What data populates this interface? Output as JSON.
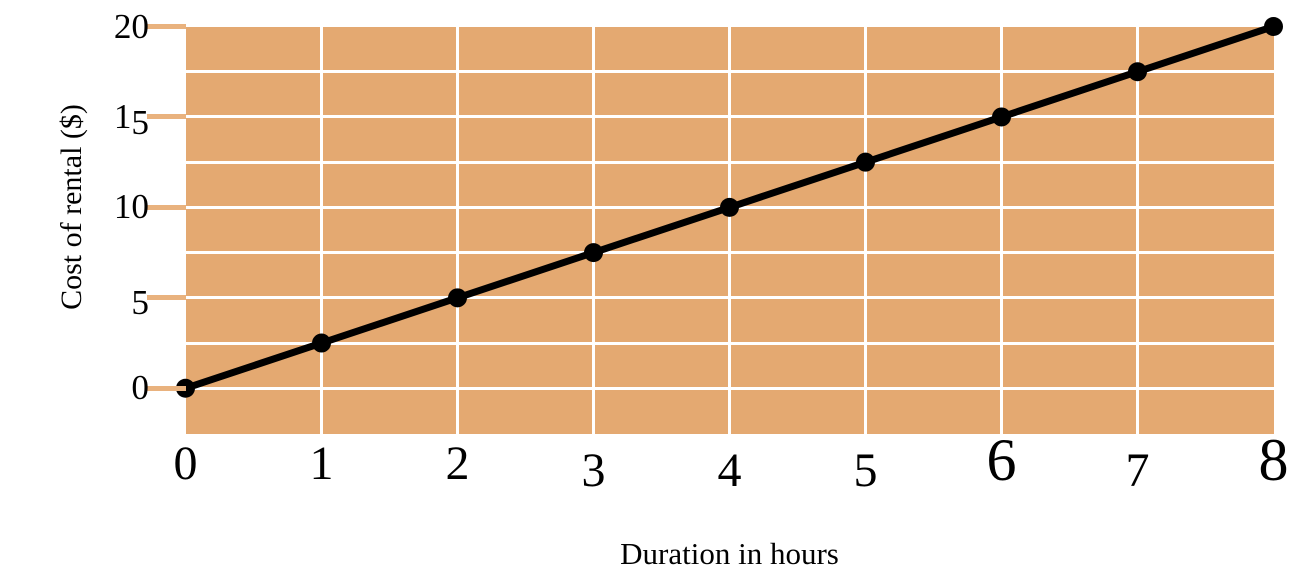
{
  "chart_data": {
    "type": "line",
    "title": "",
    "xlabel": "Duration in hours",
    "ylabel": "Cost of rental ($)",
    "x": [
      0,
      1,
      2,
      3,
      4,
      5,
      6,
      7,
      8
    ],
    "y": [
      0,
      2.5,
      5,
      7.5,
      10,
      12.5,
      15,
      17.5,
      20
    ],
    "series": [
      {
        "name": "Cost of rental",
        "x": [
          0,
          1,
          2,
          3,
          4,
          5,
          6,
          7,
          8
        ],
        "y": [
          0,
          2.5,
          5,
          7.5,
          10,
          12.5,
          15,
          17.5,
          20
        ]
      }
    ],
    "xlim": [
      0,
      8
    ],
    "ylim": [
      -2.5,
      20
    ],
    "x_ticks": [
      0,
      1,
      2,
      3,
      4,
      5,
      6,
      7,
      8
    ],
    "x_tick_labels": [
      "0",
      "1",
      "2",
      "3",
      "4",
      "5",
      "6",
      "7",
      "8"
    ],
    "y_ticks": [
      0,
      5,
      10,
      15,
      20
    ],
    "y_tick_labels": [
      "0",
      "5",
      "10",
      "15",
      "20"
    ],
    "x_grid_step": 1,
    "y_grid_step": 2.5,
    "grid": true,
    "legend_position": "none",
    "marker": "circle",
    "colors": {
      "plot_background": "#e4a971",
      "gridline": "#ffffff",
      "line": "#000000",
      "marker": "#000000",
      "axis_tick": "#e9b27e",
      "text": "#000000",
      "page_background": "#ffffff"
    }
  }
}
